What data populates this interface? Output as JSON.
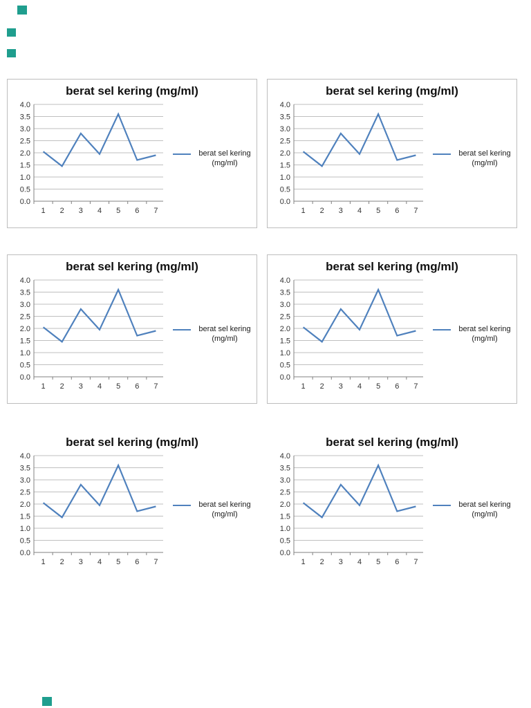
{
  "page": {
    "background": "#ffffff",
    "marker_color": "#1f9e8e"
  },
  "chart_data": [
    {
      "type": "line",
      "title": "berat sel kering (mg/ml)",
      "x": [
        1,
        2,
        3,
        4,
        5,
        6,
        7
      ],
      "values": [
        2.05,
        1.45,
        2.8,
        1.95,
        3.6,
        1.7,
        1.9
      ],
      "ylim": [
        0,
        4
      ],
      "y_ticks": [
        "4.0",
        "3.5",
        "3.0",
        "2.5",
        "2.0",
        "1.5",
        "1.0",
        "0.5",
        "0.0"
      ],
      "x_ticks": [
        "1",
        "2",
        "3",
        "4",
        "5",
        "6",
        "7"
      ],
      "legend": "berat sel kering (mg/ml)",
      "legend_position": "right",
      "grid": true,
      "line_color": "#4F81BD"
    },
    {
      "type": "line",
      "title": "berat sel kering (mg/ml)",
      "x": [
        1,
        2,
        3,
        4,
        5,
        6,
        7
      ],
      "values": [
        2.05,
        1.45,
        2.8,
        1.95,
        3.6,
        1.7,
        1.9
      ],
      "ylim": [
        0,
        4
      ],
      "y_ticks": [
        "4.0",
        "3.5",
        "3.0",
        "2.5",
        "2.0",
        "1.5",
        "1.0",
        "0.5",
        "0.0"
      ],
      "x_ticks": [
        "1",
        "2",
        "3",
        "4",
        "5",
        "6",
        "7"
      ],
      "legend": "berat sel kering (mg/ml)",
      "legend_position": "right",
      "grid": true,
      "line_color": "#4F81BD"
    },
    {
      "type": "line",
      "title": "berat sel kering (mg/ml)",
      "x": [
        1,
        2,
        3,
        4,
        5,
        6,
        7
      ],
      "values": [
        2.05,
        1.45,
        2.8,
        1.95,
        3.6,
        1.7,
        1.9
      ],
      "ylim": [
        0,
        4
      ],
      "y_ticks": [
        "4.0",
        "3.5",
        "3.0",
        "2.5",
        "2.0",
        "1.5",
        "1.0",
        "0.5",
        "0.0"
      ],
      "x_ticks": [
        "1",
        "2",
        "3",
        "4",
        "5",
        "6",
        "7"
      ],
      "legend": "berat sel kering (mg/ml)",
      "legend_position": "right",
      "grid": true,
      "line_color": "#4F81BD"
    },
    {
      "type": "line",
      "title": "berat sel kering (mg/ml)",
      "x": [
        1,
        2,
        3,
        4,
        5,
        6,
        7
      ],
      "values": [
        2.05,
        1.45,
        2.8,
        1.95,
        3.6,
        1.7,
        1.9
      ],
      "ylim": [
        0,
        4
      ],
      "y_ticks": [
        "4.0",
        "3.5",
        "3.0",
        "2.5",
        "2.0",
        "1.5",
        "1.0",
        "0.5",
        "0.0"
      ],
      "x_ticks": [
        "1",
        "2",
        "3",
        "4",
        "5",
        "6",
        "7"
      ],
      "legend": "berat sel kering (mg/ml)",
      "legend_position": "right",
      "grid": true,
      "line_color": "#4F81BD"
    },
    {
      "type": "line",
      "title": "berat sel kering (mg/ml)",
      "x": [
        1,
        2,
        3,
        4,
        5,
        6,
        7
      ],
      "values": [
        2.05,
        1.45,
        2.8,
        1.95,
        3.6,
        1.7,
        1.9
      ],
      "ylim": [
        0,
        4
      ],
      "y_ticks": [
        "4.0",
        "3.5",
        "3.0",
        "2.5",
        "2.0",
        "1.5",
        "1.0",
        "0.5",
        "0.0"
      ],
      "x_ticks": [
        "1",
        "2",
        "3",
        "4",
        "5",
        "6",
        "7"
      ],
      "legend": "berat sel kering (mg/ml)",
      "legend_position": "right",
      "grid": true,
      "line_color": "#4F81BD"
    },
    {
      "type": "line",
      "title": "berat sel kering (mg/ml)",
      "x": [
        1,
        2,
        3,
        4,
        5,
        6,
        7
      ],
      "values": [
        2.05,
        1.45,
        2.8,
        1.95,
        3.6,
        1.7,
        1.9
      ],
      "ylim": [
        0,
        4
      ],
      "y_ticks": [
        "4.0",
        "3.5",
        "3.0",
        "2.5",
        "2.0",
        "1.5",
        "1.0",
        "0.5",
        "0.0"
      ],
      "x_ticks": [
        "1",
        "2",
        "3",
        "4",
        "5",
        "6",
        "7"
      ],
      "legend": "berat sel kering (mg/ml)",
      "legend_position": "right",
      "grid": true,
      "line_color": "#4F81BD"
    }
  ]
}
